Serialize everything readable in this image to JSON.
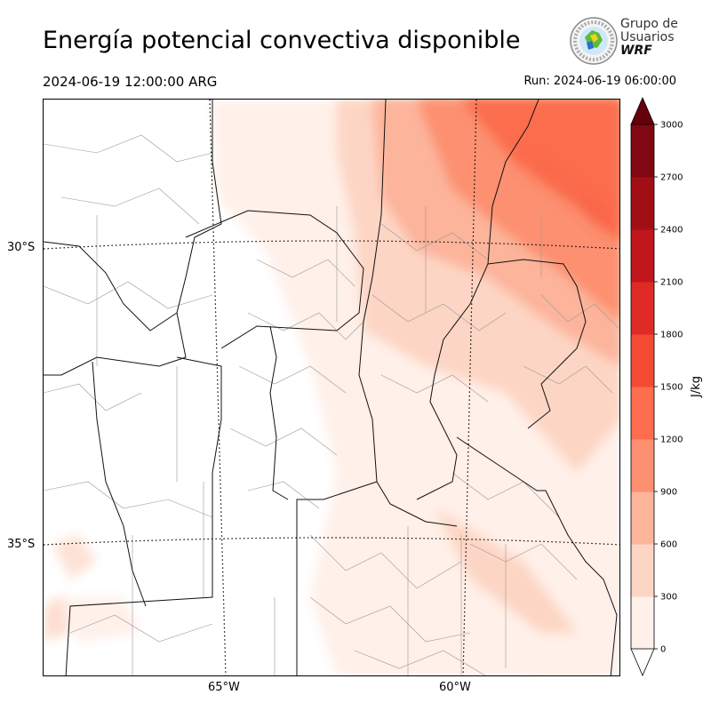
{
  "header": {
    "title": "Energía potencial convectiva disponible",
    "valid_time": "2024-06-19 12:00:00 ARG",
    "run_time": "Run: 2024-06-19 06:00:00"
  },
  "logo": {
    "line1": "Grupo de",
    "line2": "Usuarios",
    "line3": "WRF"
  },
  "map": {
    "lat_labels": [
      "30°S",
      "35°S"
    ],
    "lon_labels": [
      "65°W",
      "60°W"
    ],
    "field": "CAPE"
  },
  "colorbar": {
    "unit_label": "J/kg",
    "levels": [
      0,
      300,
      600,
      900,
      1200,
      1500,
      1800,
      2100,
      2400,
      2700,
      3000
    ],
    "colors": [
      "#fff0e9",
      "#fdd5c4",
      "#fcb49b",
      "#fc9070",
      "#fb6d4d",
      "#f44a34",
      "#e02a25",
      "#c1171c",
      "#a10f15",
      "#810712"
    ],
    "over_color": "#67000d"
  }
}
